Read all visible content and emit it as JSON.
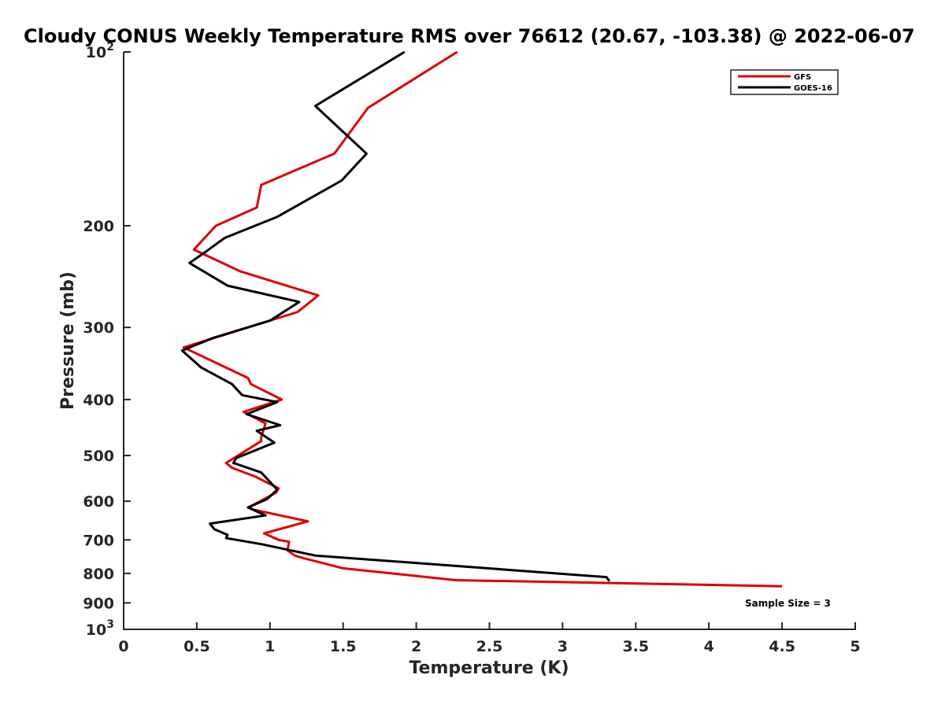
{
  "chart_data": {
    "type": "line",
    "title": "Cloudy CONUS Weekly Temperature RMS over 76612 (20.67, -103.38) @ 2022-06-07",
    "xlabel": "Temperature (K)",
    "ylabel": "Pressure (mb)",
    "xlim": [
      0,
      5
    ],
    "ylim": [
      100,
      1000
    ],
    "yscale": "log",
    "y_reversed": true,
    "x_ticks": [
      "0",
      "0.5",
      "1",
      "1.5",
      "2",
      "2.5",
      "3",
      "3.5",
      "4",
      "4.5",
      "5"
    ],
    "y_ticks": [
      {
        "value": 100,
        "base": "10",
        "exp": "2"
      },
      {
        "value": 200,
        "label": "200"
      },
      {
        "value": 300,
        "label": "300"
      },
      {
        "value": 400,
        "label": "400"
      },
      {
        "value": 500,
        "label": "500"
      },
      {
        "value": 600,
        "label": "600"
      },
      {
        "value": 700,
        "label": "700"
      },
      {
        "value": 800,
        "label": "800"
      },
      {
        "value": 900,
        "label": "900"
      },
      {
        "value": 1000,
        "base": "10",
        "exp": "3"
      }
    ],
    "legend_position": "top-right",
    "series": [
      {
        "name": "GFS",
        "color": "#e00000",
        "points": [
          [
            2.28,
            100
          ],
          [
            1.67,
            125
          ],
          [
            1.44,
            150
          ],
          [
            0.94,
            170
          ],
          [
            0.91,
            186
          ],
          [
            0.63,
            200
          ],
          [
            0.48,
            220
          ],
          [
            0.8,
            240
          ],
          [
            1.33,
            264
          ],
          [
            1.19,
            282
          ],
          [
            0.41,
            325
          ],
          [
            0.85,
            367
          ],
          [
            0.87,
            376
          ],
          [
            1.08,
            400
          ],
          [
            0.82,
            420
          ],
          [
            0.97,
            440
          ],
          [
            0.94,
            465
          ],
          [
            0.94,
            472
          ],
          [
            0.7,
            515
          ],
          [
            0.74,
            525
          ],
          [
            0.9,
            544
          ],
          [
            1.06,
            570
          ],
          [
            1.04,
            580
          ],
          [
            0.86,
            614
          ],
          [
            0.88,
            620
          ],
          [
            1.26,
            650
          ],
          [
            0.96,
            682
          ],
          [
            1.06,
            700
          ],
          [
            1.13,
            705
          ],
          [
            1.12,
            730
          ],
          [
            1.17,
            745
          ],
          [
            1.23,
            753
          ],
          [
            1.5,
            784
          ],
          [
            2.27,
            822
          ],
          [
            4.5,
            842
          ]
        ]
      },
      {
        "name": "GOES-16",
        "color": "#000000",
        "points": [
          [
            1.92,
            100
          ],
          [
            1.31,
            124
          ],
          [
            1.66,
            150
          ],
          [
            1.49,
            167
          ],
          [
            1.05,
            193
          ],
          [
            0.69,
            210
          ],
          [
            0.57,
            221
          ],
          [
            0.45,
            232
          ],
          [
            0.71,
            254
          ],
          [
            1.2,
            271
          ],
          [
            1.0,
            292
          ],
          [
            0.61,
            313
          ],
          [
            0.4,
            329
          ],
          [
            0.53,
            352
          ],
          [
            0.74,
            376
          ],
          [
            0.81,
            393
          ],
          [
            1.05,
            404
          ],
          [
            0.84,
            424
          ],
          [
            1.07,
            443
          ],
          [
            0.91,
            453
          ],
          [
            1.03,
            475
          ],
          [
            0.77,
            505
          ],
          [
            0.75,
            515
          ],
          [
            0.94,
            535
          ],
          [
            1.05,
            573
          ],
          [
            0.98,
            595
          ],
          [
            0.85,
            615
          ],
          [
            0.97,
            635
          ],
          [
            0.59,
            656
          ],
          [
            0.62,
            671
          ],
          [
            0.71,
            686
          ],
          [
            0.7,
            695
          ],
          [
            0.94,
            712
          ],
          [
            1.31,
            745
          ],
          [
            3.3,
            812
          ],
          [
            3.32,
            825
          ]
        ]
      }
    ],
    "annotations": [
      "Sample Size = 3"
    ]
  }
}
